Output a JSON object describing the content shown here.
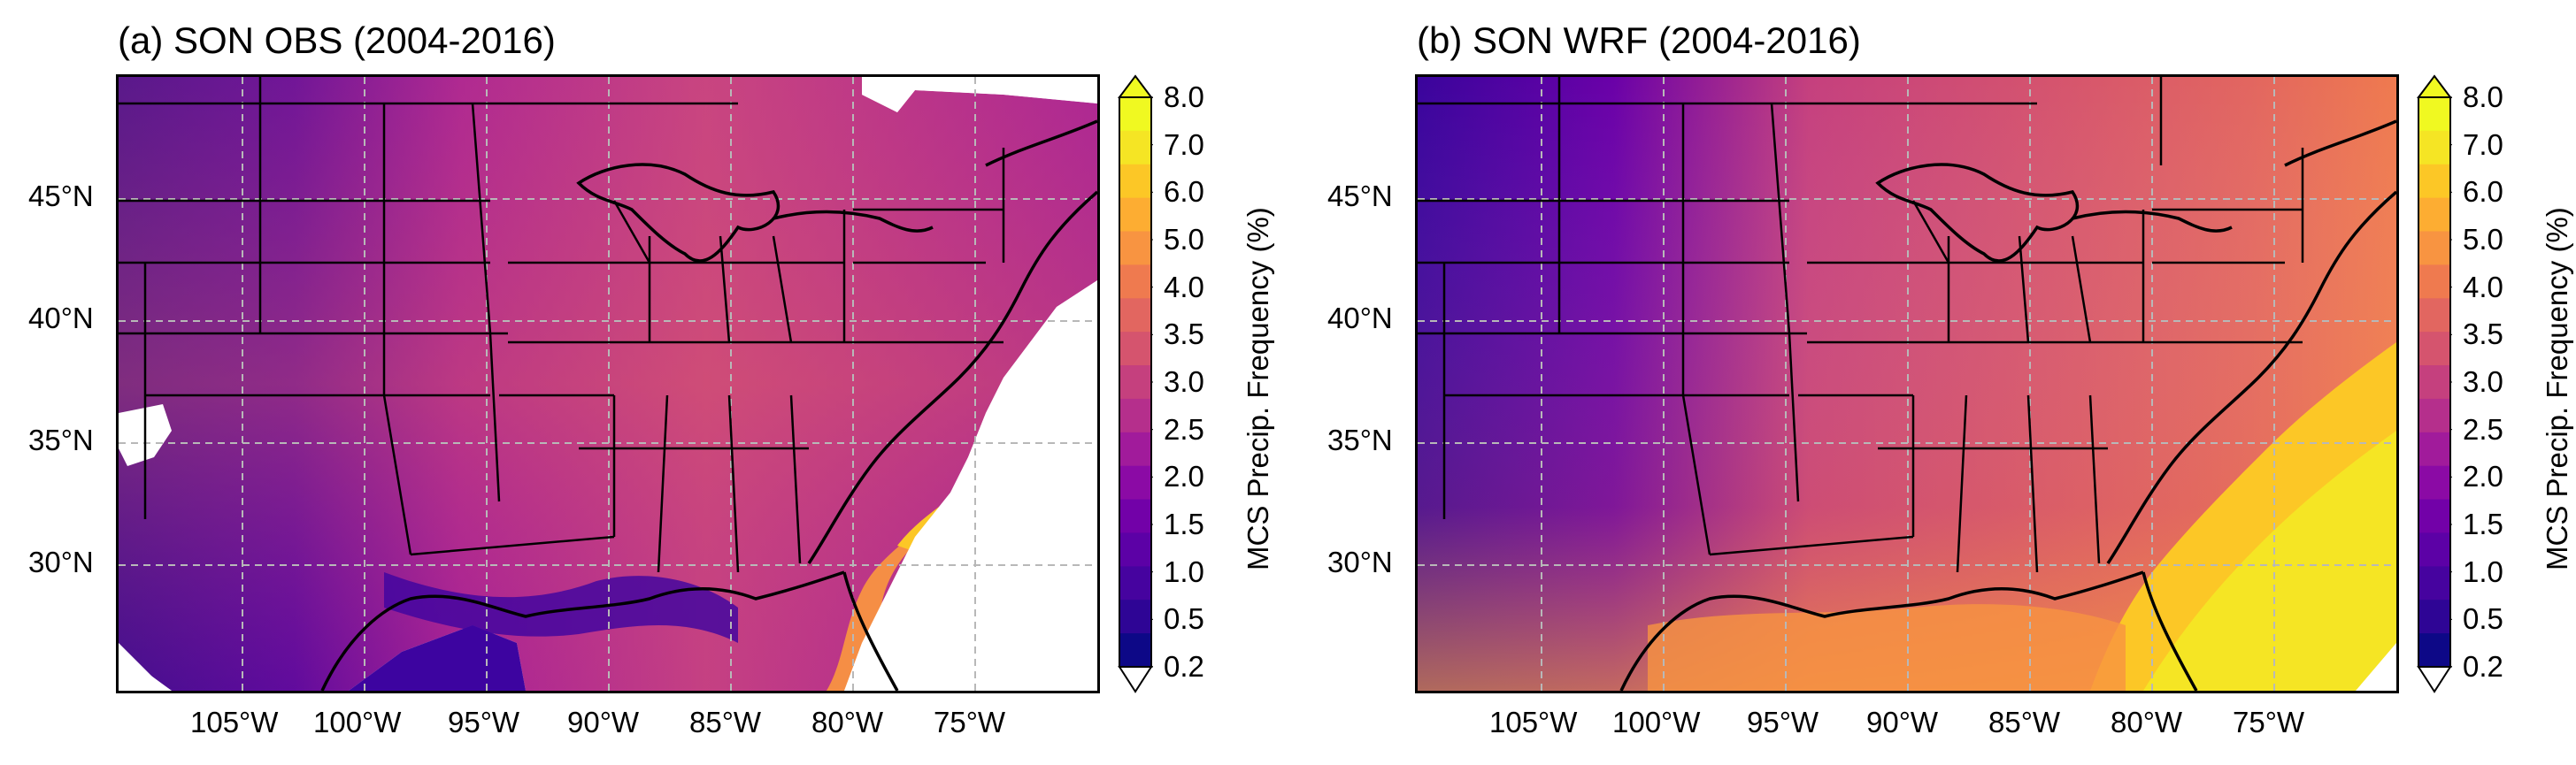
{
  "panels": [
    {
      "id": "a",
      "title": "(a) SON OBS (2004-2016)",
      "colorbar_label": "MCS Precip. Frequency (%)"
    },
    {
      "id": "b",
      "title": "(b) SON WRF (2004-2016)",
      "colorbar_label": "MCS Precip. Frequency (%)"
    }
  ],
  "latitude_labels": [
    "45°N",
    "40°N",
    "35°N",
    "30°N"
  ],
  "longitude_labels": [
    "105°W",
    "100°W",
    "95°W",
    "90°W",
    "85°W",
    "80°W",
    "75°W"
  ],
  "colorbar_ticks": [
    "8.0",
    "7.0",
    "6.0",
    "5.0",
    "4.0",
    "3.5",
    "3.0",
    "2.5",
    "2.0",
    "1.5",
    "1.0",
    "0.5",
    "0.2"
  ],
  "colormap": [
    "#0d0887",
    "#2e0595",
    "#46039f",
    "#5c01a6",
    "#7201a8",
    "#8b0aa5",
    "#a11b9b",
    "#b52f8c",
    "#c5407e",
    "#d5546e",
    "#e26660",
    "#ef7a4f",
    "#f89441",
    "#fdad32",
    "#fcc726",
    "#f5e524",
    "#f0f921"
  ]
}
